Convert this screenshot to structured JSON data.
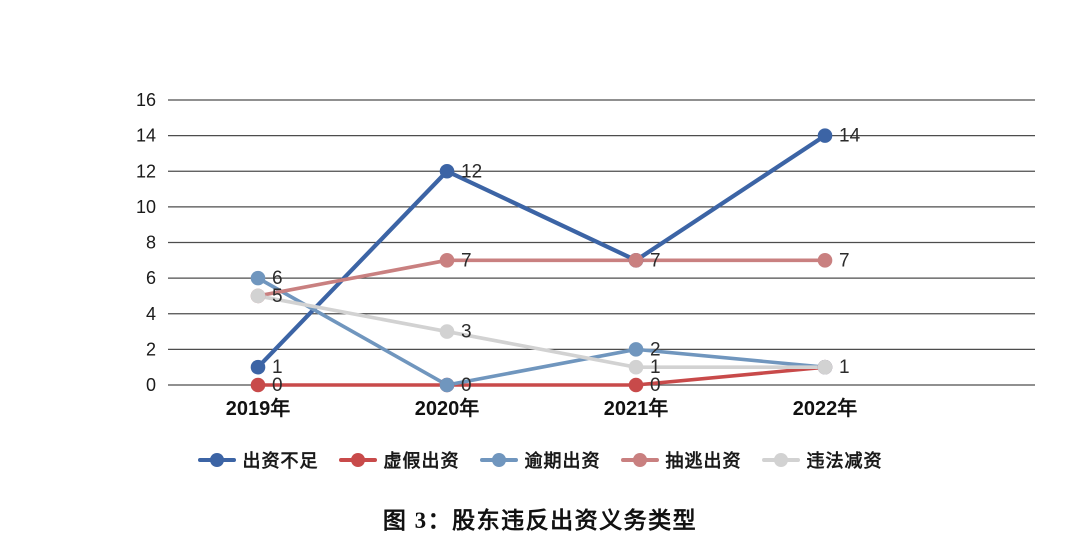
{
  "chart_data": {
    "type": "line",
    "caption": "图 3：股东违反出资义务类型",
    "categories": [
      "2019年",
      "2020年",
      "2021年",
      "2022年"
    ],
    "y_ticks": [
      0,
      2,
      4,
      6,
      8,
      10,
      12,
      14,
      16
    ],
    "ylim": [
      0,
      16
    ],
    "grid": "horizontal",
    "legend_position": "bottom",
    "colors": {
      "grid": "#4d4d4d",
      "tick_text": "#1a1a1a",
      "data_label": "#2b2b2b"
    },
    "series": [
      {
        "name": "出资不足",
        "color": "#3c64a5",
        "values": [
          1,
          12,
          7,
          14
        ],
        "visible_labels": [
          "1",
          "12",
          "",
          "14"
        ]
      },
      {
        "name": "虚假出资",
        "color": "#c84a4a",
        "values": [
          0,
          0,
          0,
          1
        ],
        "visible_labels": [
          "0",
          "",
          "0",
          ""
        ]
      },
      {
        "name": "逾期出资",
        "color": "#7096be",
        "values": [
          6,
          0,
          2,
          1
        ],
        "visible_labels": [
          "6",
          "0",
          "2",
          ""
        ]
      },
      {
        "name": "抽逃出资",
        "color": "#c98080",
        "values": [
          5,
          7,
          7,
          7
        ],
        "visible_labels": [
          "",
          "7",
          "7",
          "7"
        ]
      },
      {
        "name": "违法减资",
        "color": "#d2d2d2",
        "values": [
          5,
          3,
          1,
          1
        ],
        "visible_labels": [
          "5",
          "3",
          "1",
          "1"
        ]
      }
    ]
  }
}
